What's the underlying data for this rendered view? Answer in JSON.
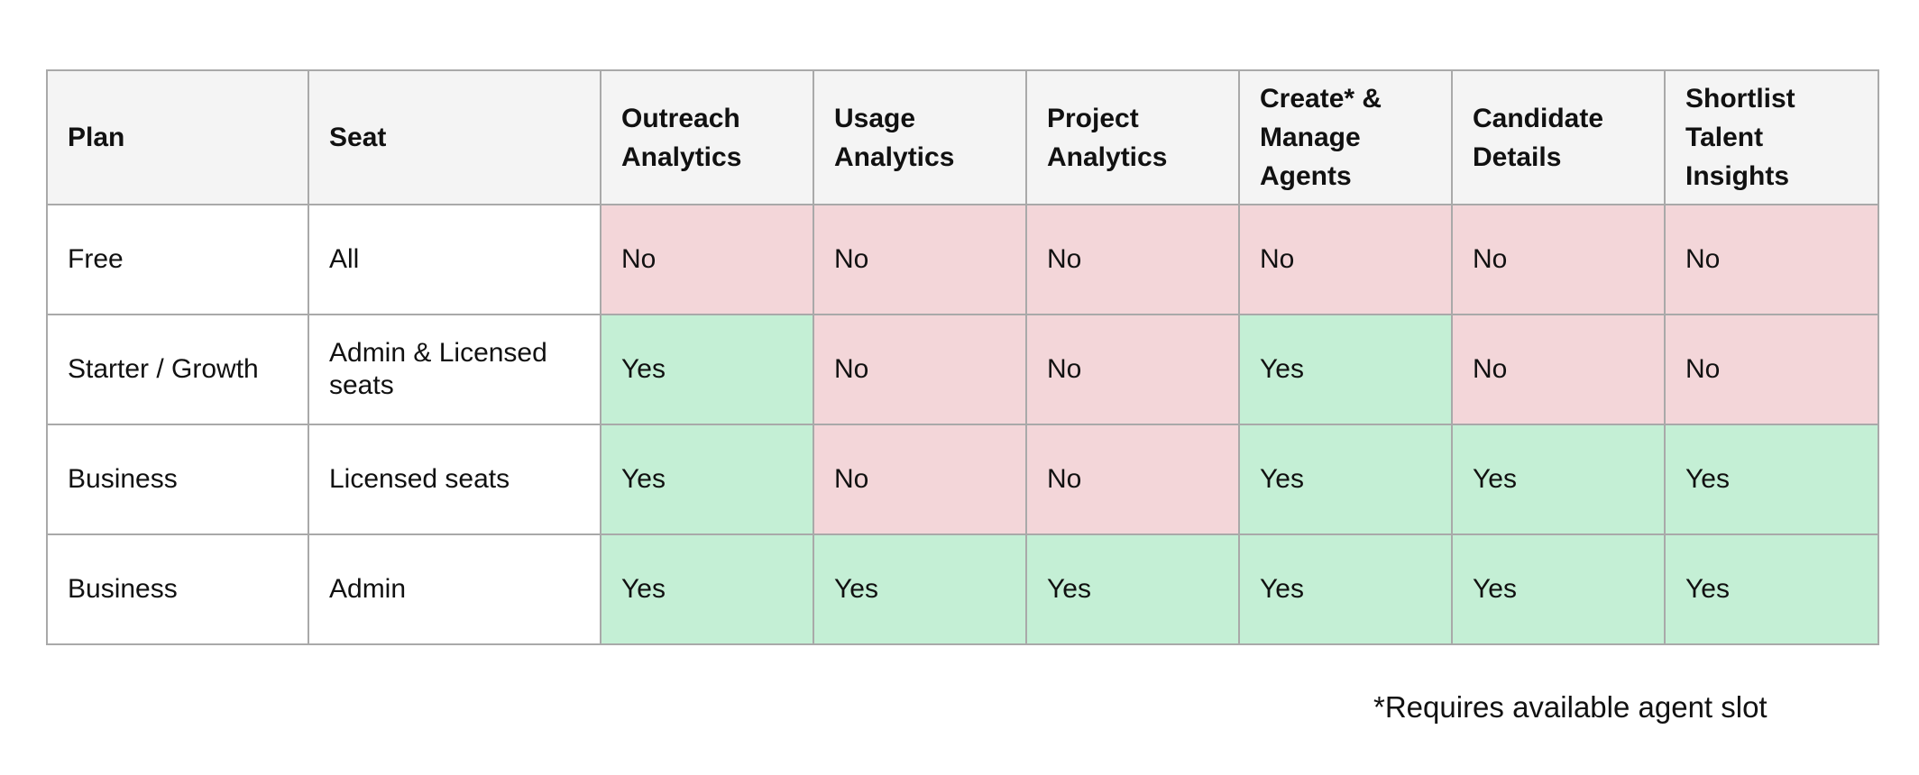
{
  "table": {
    "columns": [
      "Plan",
      "Seat",
      "Outreach Analytics",
      "Usage Analytics",
      "Project Analytics",
      "Create* & Manage Agents",
      "Candidate Details",
      "Shortlist Talent Insights"
    ],
    "rows": [
      {
        "plan": "Free",
        "seat": "All",
        "values": [
          "No",
          "No",
          "No",
          "No",
          "No",
          "No"
        ]
      },
      {
        "plan": "Starter / Growth",
        "seat": "Admin & Licensed seats",
        "values": [
          "Yes",
          "No",
          "No",
          "Yes",
          "No",
          "No"
        ]
      },
      {
        "plan": "Business",
        "seat": "Licensed seats",
        "values": [
          "Yes",
          "No",
          "No",
          "Yes",
          "Yes",
          "Yes"
        ]
      },
      {
        "plan": "Business",
        "seat": "Admin",
        "values": [
          "Yes",
          "Yes",
          "Yes",
          "Yes",
          "Yes",
          "Yes"
        ]
      }
    ]
  },
  "colors": {
    "yes": "#c4efd5",
    "no": "#f3d6d9",
    "header": "#f4f4f4",
    "border": "#a9a9a9"
  },
  "footnote": "*Requires available agent slot"
}
